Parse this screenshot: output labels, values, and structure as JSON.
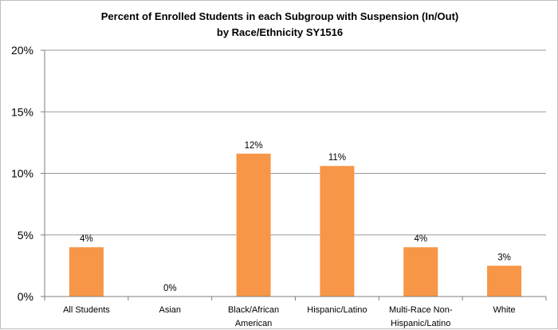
{
  "chart_data": {
    "type": "bar",
    "title": [
      "Percent of Enrolled Students in each Subgroup with Suspension (In/Out)",
      "by Race/Ethnicity SY1516"
    ],
    "categories": [
      [
        "All Students"
      ],
      [
        "Asian"
      ],
      [
        "Black/African",
        "American"
      ],
      [
        "Hispanic/Latino"
      ],
      [
        "Multi-Race Non-",
        "Hispanic/Latino"
      ],
      [
        "White"
      ]
    ],
    "values": [
      4.0,
      0.0,
      11.6,
      10.6,
      4.0,
      2.5
    ],
    "data_labels": [
      "4%",
      "0%",
      "12%",
      "11%",
      "4%",
      "3%"
    ],
    "yticks": [
      0,
      5,
      10,
      15,
      20
    ],
    "ytick_labels": [
      "0%",
      "5%",
      "10%",
      "15%",
      "20%"
    ],
    "ylim": [
      0,
      20
    ],
    "xlabel": "",
    "ylabel": "",
    "grid": true,
    "legend": "none",
    "colors": {
      "bar": "#f79646",
      "grid": "#9a9a9a",
      "axis": "#7f7f7f"
    }
  }
}
